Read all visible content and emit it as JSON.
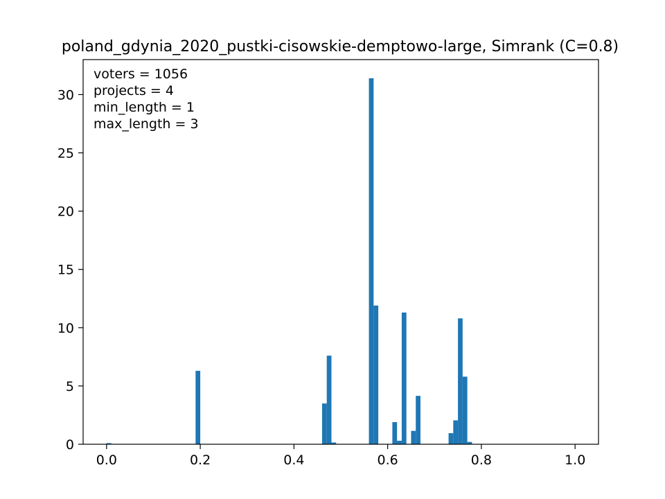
{
  "chart_data": {
    "type": "bar",
    "title": "poland_gdynia_2020_pustki-cisowskie-demptowo-large, Simrank (C=0.8)",
    "xlabel": "",
    "ylabel": "",
    "xlim": [
      -0.05,
      1.05
    ],
    "ylim": [
      0,
      33
    ],
    "bin_width": 0.01,
    "grid": false,
    "bar_color": "#1f77b4",
    "x_ticks": [
      0.0,
      0.2,
      0.4,
      0.6,
      0.8,
      1.0
    ],
    "x_tick_labels": [
      "0.0",
      "0.2",
      "0.4",
      "0.6",
      "0.8",
      "1.0"
    ],
    "y_ticks": [
      0,
      5,
      10,
      15,
      20,
      25,
      30
    ],
    "y_tick_labels": [
      "0",
      "5",
      "10",
      "15",
      "20",
      "25",
      "30"
    ],
    "annotations": [
      "voters = 1056",
      "projects = 4",
      "min_length = 1",
      "max_length = 3"
    ],
    "bins": [
      {
        "x": 0.0,
        "value": 0.1
      },
      {
        "x": 0.19,
        "value": 6.3
      },
      {
        "x": 0.46,
        "value": 3.5
      },
      {
        "x": 0.47,
        "value": 7.6
      },
      {
        "x": 0.48,
        "value": 0.15
      },
      {
        "x": 0.56,
        "value": 31.4
      },
      {
        "x": 0.57,
        "value": 11.9
      },
      {
        "x": 0.61,
        "value": 1.9
      },
      {
        "x": 0.62,
        "value": 0.3
      },
      {
        "x": 0.63,
        "value": 11.3
      },
      {
        "x": 0.65,
        "value": 1.15
      },
      {
        "x": 0.66,
        "value": 4.15
      },
      {
        "x": 0.73,
        "value": 0.95
      },
      {
        "x": 0.74,
        "value": 2.05
      },
      {
        "x": 0.75,
        "value": 10.8
      },
      {
        "x": 0.76,
        "value": 5.8
      },
      {
        "x": 0.77,
        "value": 0.2
      }
    ]
  }
}
